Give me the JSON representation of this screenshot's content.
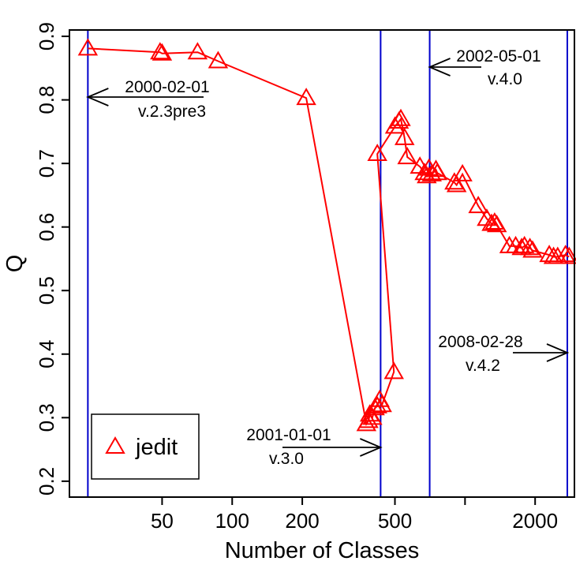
{
  "chart_data": {
    "type": "scatter",
    "xlabel": "Number of Classes",
    "ylabel": "Q",
    "xscale": "log",
    "xlim": [
      20,
      2950
    ],
    "ylim": [
      0.175,
      0.91
    ],
    "grid": false,
    "x_ticks": [
      {
        "value": 50,
        "label": "50"
      },
      {
        "value": 100,
        "label": "100"
      },
      {
        "value": 200,
        "label": "200"
      },
      {
        "value": 500,
        "label": "500"
      },
      {
        "value": 1000,
        "label": ""
      },
      {
        "value": 2000,
        "label": "2000"
      }
    ],
    "y_ticks": [
      {
        "value": 0.2,
        "label": "0.2"
      },
      {
        "value": 0.3,
        "label": "0.3"
      },
      {
        "value": 0.4,
        "label": "0.4"
      },
      {
        "value": 0.5,
        "label": "0.5"
      },
      {
        "value": 0.6,
        "label": "0.6"
      },
      {
        "value": 0.7,
        "label": "0.7"
      },
      {
        "value": 0.8,
        "label": "0.8"
      },
      {
        "value": 0.9,
        "label": "0.9"
      }
    ],
    "legend": {
      "position": "bottom-left",
      "entries": [
        "jedit"
      ]
    },
    "series": [
      {
        "name": "jedit",
        "color": "#ff0000",
        "marker": "triangle",
        "points": [
          [
            24,
            0.881
          ],
          [
            49,
            0.875
          ],
          [
            50,
            0.873
          ],
          [
            71,
            0.875
          ],
          [
            87,
            0.861
          ],
          [
            208,
            0.803
          ],
          [
            377,
            0.29
          ],
          [
            385,
            0.295
          ],
          [
            390,
            0.305
          ],
          [
            400,
            0.3
          ],
          [
            410,
            0.315
          ],
          [
            420,
            0.318
          ],
          [
            430,
            0.328
          ],
          [
            440,
            0.32
          ],
          [
            495,
            0.372
          ],
          [
            420,
            0.715
          ],
          [
            500,
            0.758
          ],
          [
            520,
            0.766
          ],
          [
            530,
            0.77
          ],
          [
            550,
            0.74
          ],
          [
            565,
            0.71
          ],
          [
            640,
            0.695
          ],
          [
            670,
            0.685
          ],
          [
            685,
            0.68
          ],
          [
            700,
            0.692
          ],
          [
            720,
            0.683
          ],
          [
            750,
            0.69
          ],
          [
            760,
            0.685
          ],
          [
            900,
            0.67
          ],
          [
            920,
            0.666
          ],
          [
            975,
            0.683
          ],
          [
            1140,
            0.633
          ],
          [
            1240,
            0.613
          ],
          [
            1300,
            0.605
          ],
          [
            1340,
            0.607
          ],
          [
            1370,
            0.603
          ],
          [
            1550,
            0.57
          ],
          [
            1650,
            0.57
          ],
          [
            1750,
            0.567
          ],
          [
            1800,
            0.57
          ],
          [
            1900,
            0.567
          ],
          [
            1950,
            0.563
          ],
          [
            2300,
            0.556
          ],
          [
            2400,
            0.553
          ],
          [
            2500,
            0.553
          ],
          [
            2700,
            0.556
          ],
          [
            2800,
            0.553
          ]
        ]
      }
    ],
    "release_lines": [
      {
        "x": 24,
        "date": "2000-02-01",
        "version": "v.2.3pre3"
      },
      {
        "x": 434,
        "date": "2001-01-01",
        "version": "v.3.0"
      },
      {
        "x": 705,
        "date": "2002-05-01",
        "version": "v.4.0"
      },
      {
        "x": 2750,
        "date": "2008-02-28",
        "version": "v.4.2"
      }
    ],
    "line_color": "#0000cc"
  }
}
